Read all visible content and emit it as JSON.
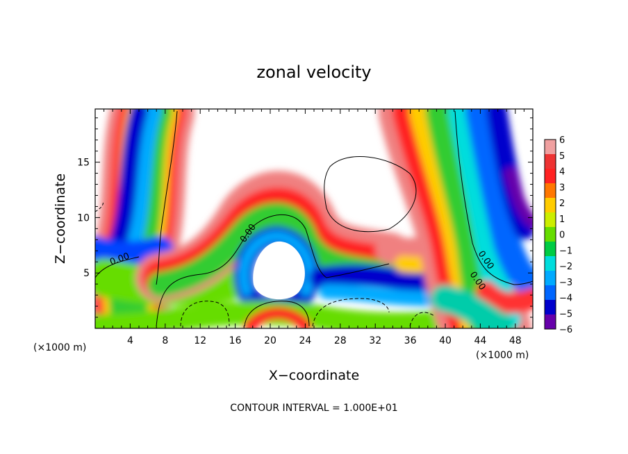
{
  "chart_data": {
    "type": "heatmap",
    "title": "zonal velocity",
    "xlabel": "X−coordinate",
    "ylabel": "Z−coordinate",
    "x_unit_left": "(×1000 m)",
    "x_unit_right": "(×1000 m)",
    "xlim": [
      0,
      50
    ],
    "ylim": [
      0,
      19.8
    ],
    "x_ticks": [
      4,
      8,
      12,
      16,
      20,
      24,
      28,
      32,
      36,
      40,
      44,
      48
    ],
    "y_ticks": [
      5,
      10,
      15
    ],
    "colorbar_ticks": [
      6,
      5,
      4,
      3,
      2,
      1,
      0,
      -1,
      -2,
      -3,
      -4,
      -5,
      -6
    ],
    "colorbar_colors": [
      "#f0a0a0",
      "#ee3333",
      "#ff2222",
      "#ff7700",
      "#ffcc00",
      "#ccee00",
      "#66dd00",
      "#00cc44",
      "#00dddd",
      "#00aaff",
      "#0066ff",
      "#0000cc",
      "#6600aa"
    ],
    "contour_label": "0.00",
    "footer": "CONTOUR INTERVAL = 1.000E+01"
  }
}
